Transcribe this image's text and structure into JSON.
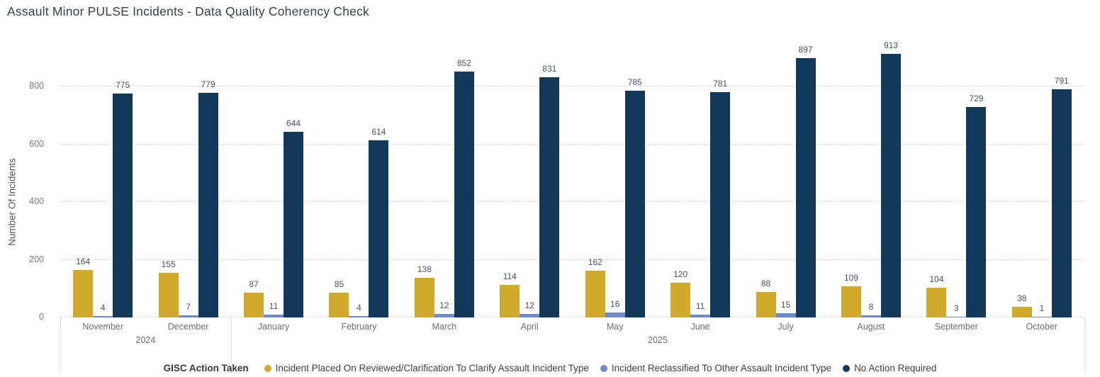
{
  "page": {
    "title": "Assault Minor PULSE Incidents - Data Quality Coherency Check"
  },
  "legend": {
    "title": "GISC Action Taken",
    "position": "bottom"
  },
  "colors": {
    "gold": "#d1aa2b",
    "periwinkle": "#6d8bca",
    "navy": "#12395a",
    "grid": "#cfcfcf",
    "axis_text": "#7a7a7a",
    "value_text": "#44546a",
    "title_text": "#33404f"
  },
  "chart_data": {
    "type": "bar",
    "title": "Assault Minor PULSE Incidents - Data Quality Coherency Check",
    "xlabel": "",
    "ylabel": "Number Of Incidents",
    "ylim": [
      0,
      960
    ],
    "y_ticks": [
      0,
      200,
      400,
      600,
      800
    ],
    "grid": true,
    "legend_position": "bottom",
    "groups": [
      {
        "year": "2024",
        "months": [
          "November",
          "December"
        ]
      },
      {
        "year": "2025",
        "months": [
          "January",
          "February",
          "March",
          "April",
          "May",
          "June",
          "July",
          "August",
          "September",
          "October"
        ]
      }
    ],
    "categories": [
      "November",
      "December",
      "January",
      "February",
      "March",
      "April",
      "May",
      "June",
      "July",
      "August",
      "September",
      "October"
    ],
    "series": [
      {
        "name": "Incident Placed On Reviewed/Clarification To Clarify Assault Incident Type",
        "color": "#d1aa2b",
        "values": [
          164,
          155,
          87,
          85,
          138,
          114,
          162,
          120,
          88,
          109,
          104,
          38
        ]
      },
      {
        "name": "Incident Reclassified To Other Assault Incident Type",
        "color": "#6d8bca",
        "values": [
          4,
          7,
          11,
          4,
          12,
          12,
          16,
          11,
          15,
          8,
          3,
          1
        ]
      },
      {
        "name": "No Action Required",
        "color": "#12395a",
        "values": [
          775,
          779,
          644,
          614,
          852,
          831,
          785,
          781,
          897,
          913,
          729,
          791
        ]
      }
    ]
  }
}
